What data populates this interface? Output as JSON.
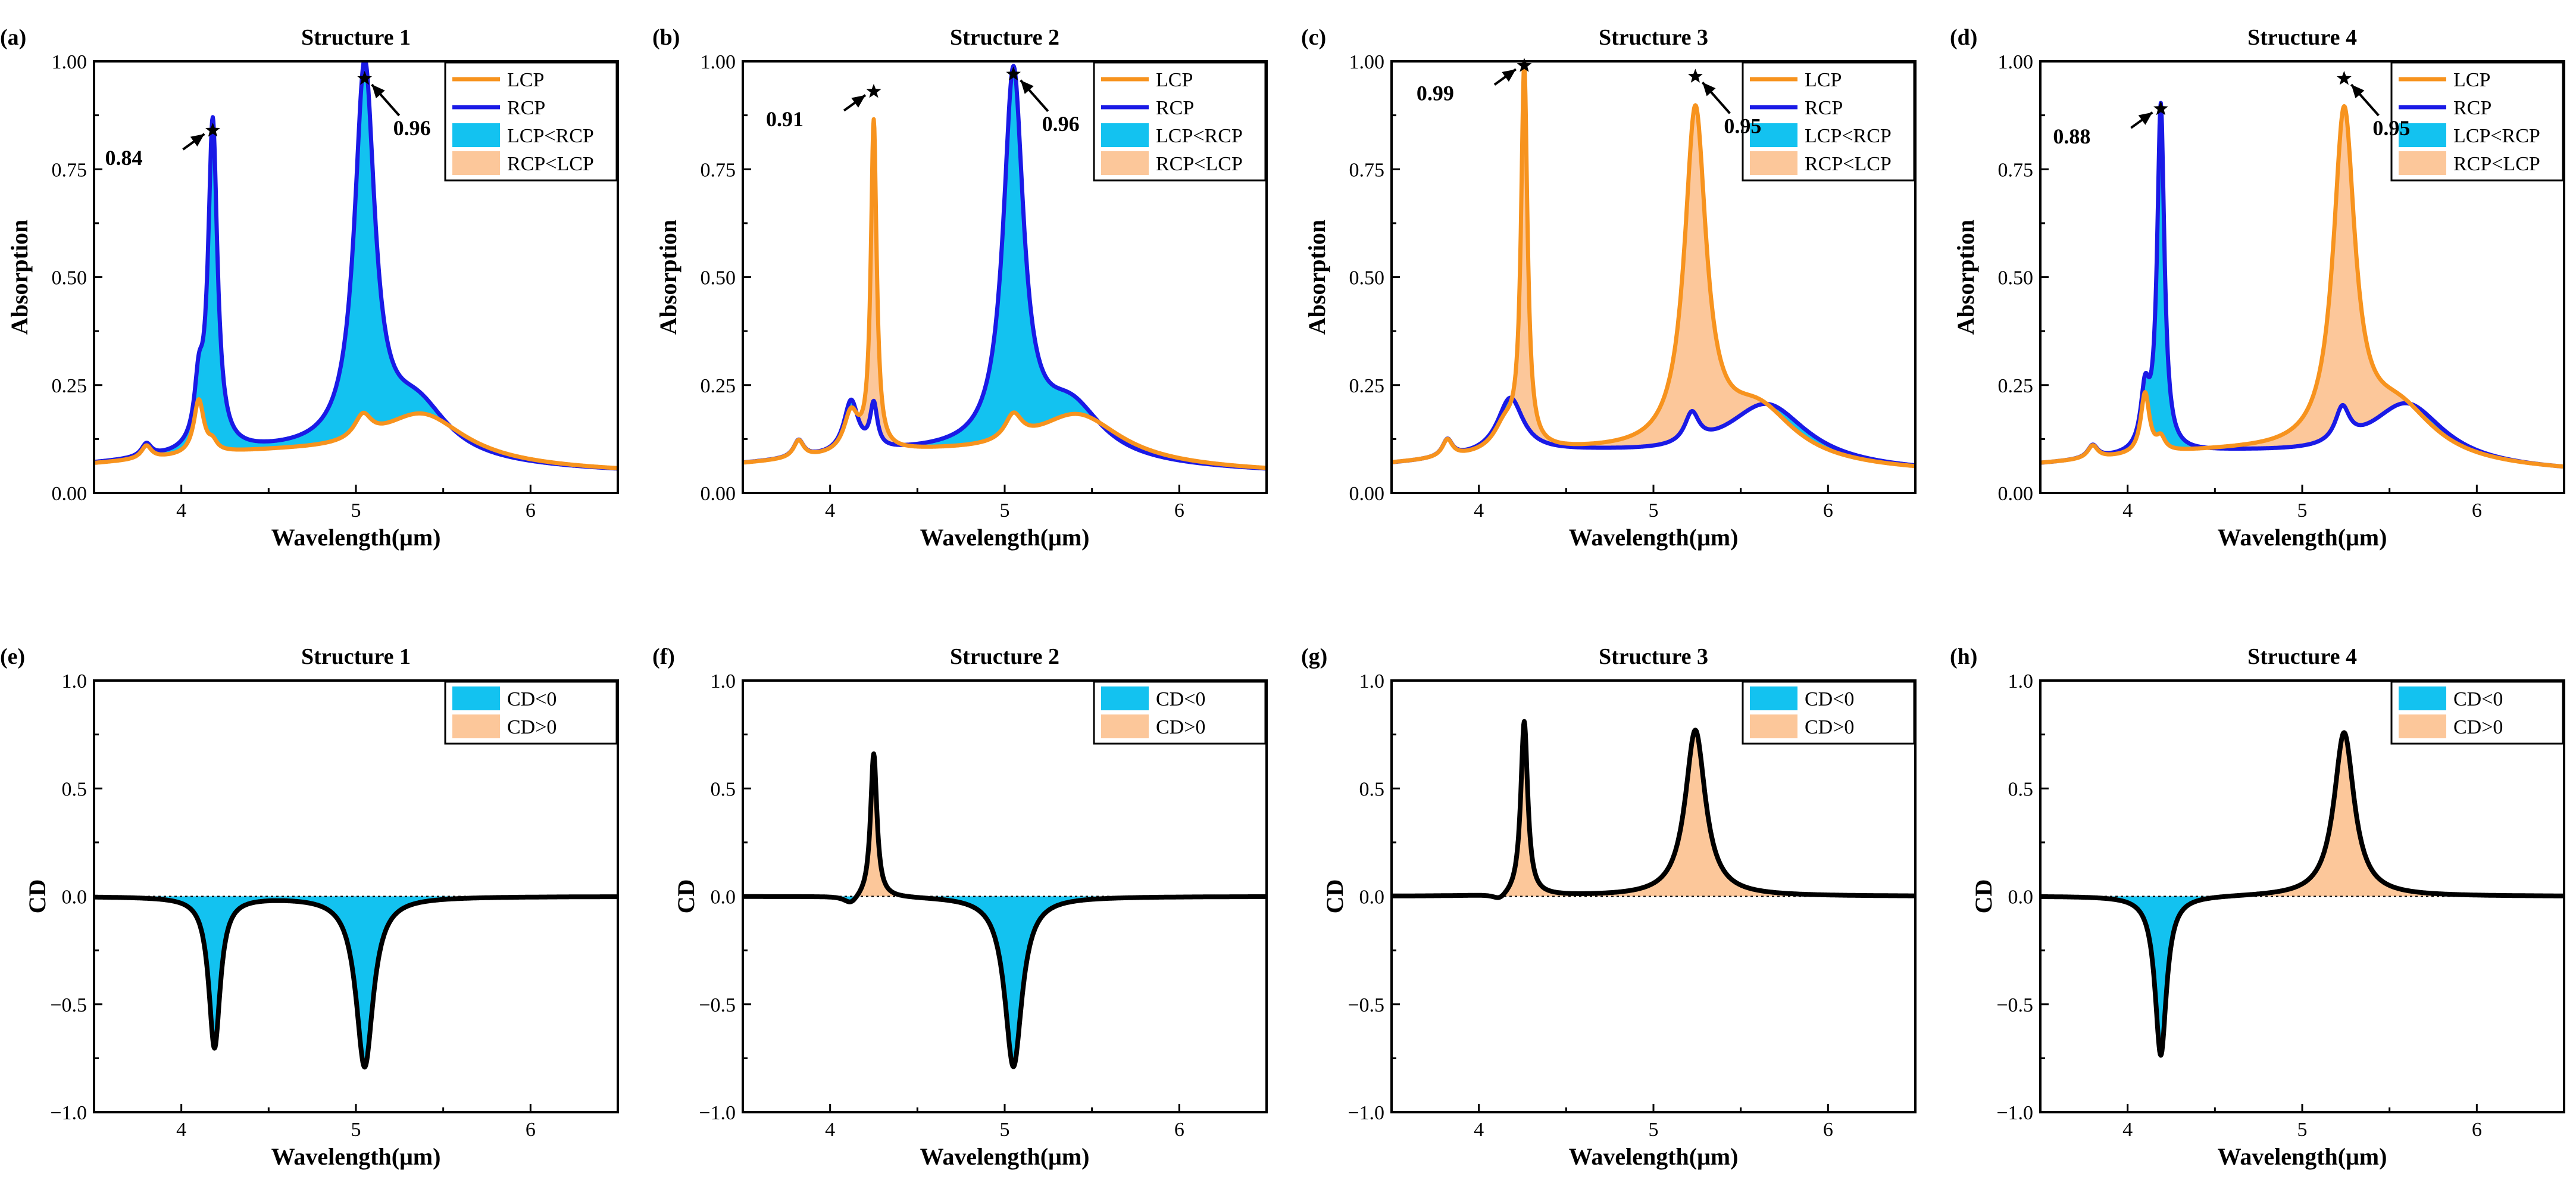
{
  "colors": {
    "lcp": "#f7931e",
    "rcp": "#1a1ae6",
    "cd_line": "#000000",
    "fill_lcp_lt_rcp": "#13c2f0",
    "fill_rcp_lt_lcp": "#fcc79a",
    "zero_line": "#000000"
  },
  "chart_data": [
    {
      "panel_label": "(a)",
      "title": "Structure 1",
      "type": "line",
      "xlabel": "Wavelength(μm)",
      "ylabel": "Absorption",
      "xlim": [
        3.5,
        6.5
      ],
      "ylim": [
        0,
        1
      ],
      "xticks": [
        4,
        5,
        6
      ],
      "yticks": [
        0.0,
        0.25,
        0.5,
        0.75,
        1.0
      ],
      "ytick_labels": [
        "0.00",
        "0.25",
        "0.50",
        "0.75",
        "1.00"
      ],
      "legend": {
        "placement": "top-right",
        "entries": [
          {
            "label": "LCP",
            "style": "line",
            "color": "lcp"
          },
          {
            "label": "RCP",
            "style": "line",
            "color": "rcp"
          },
          {
            "label": "LCP<RCP",
            "style": "fill",
            "color": "fill_lcp_lt_rcp"
          },
          {
            "label": "RCP<LCP",
            "style": "fill",
            "color": "fill_rcp_lt_lcp"
          }
        ]
      },
      "series": [
        {
          "name": "LCP",
          "color": "lcp",
          "peaks": [
            {
              "x": 3.8,
              "h": 0.03,
              "w": 0.035
            },
            {
              "x": 4.1,
              "h": 0.125,
              "w": 0.035
            },
            {
              "x": 4.18,
              "h": 0.02,
              "w": 0.03
            },
            {
              "x": 5.04,
              "h": 0.055,
              "w": 0.06
            },
            {
              "x": 5.38,
              "h": 0.11,
              "w": 0.3
            }
          ]
        },
        {
          "name": "RCP",
          "color": "rcp",
          "peaks": [
            {
              "x": 3.8,
              "h": 0.03,
              "w": 0.035
            },
            {
              "x": 4.1,
              "h": 0.125,
              "w": 0.03
            },
            {
              "x": 4.18,
              "h": 0.76,
              "w": 0.032
            },
            {
              "x": 5.05,
              "h": 0.88,
              "w": 0.07
            },
            {
              "x": 5.35,
              "h": 0.12,
              "w": 0.22
            }
          ]
        }
      ],
      "annotations": [
        {
          "text": "0.84",
          "x": 4.18,
          "y": 0.84
        },
        {
          "text": "0.96",
          "x": 5.05,
          "y": 0.96
        }
      ]
    },
    {
      "panel_label": "(b)",
      "title": "Structure 2",
      "type": "line",
      "xlabel": "Wavelength(μm)",
      "ylabel": "Absorption",
      "xlim": [
        3.5,
        6.5
      ],
      "ylim": [
        0,
        1
      ],
      "xticks": [
        4,
        5,
        6
      ],
      "yticks": [
        0.0,
        0.25,
        0.5,
        0.75,
        1.0
      ],
      "ytick_labels": [
        "0.00",
        "0.25",
        "0.50",
        "0.75",
        "1.00"
      ],
      "legend": {
        "placement": "top-right",
        "entries": [
          {
            "label": "LCP",
            "style": "line",
            "color": "lcp"
          },
          {
            "label": "RCP",
            "style": "line",
            "color": "rcp"
          },
          {
            "label": "LCP<RCP",
            "style": "fill",
            "color": "fill_lcp_lt_rcp"
          },
          {
            "label": "RCP<LCP",
            "style": "fill",
            "color": "fill_rcp_lt_lcp"
          }
        ]
      },
      "series": [
        {
          "name": "LCP",
          "color": "lcp",
          "peaks": [
            {
              "x": 3.82,
              "h": 0.04,
              "w": 0.035
            },
            {
              "x": 4.12,
              "h": 0.09,
              "w": 0.05
            },
            {
              "x": 4.25,
              "h": 0.76,
              "w": 0.02
            },
            {
              "x": 5.05,
              "h": 0.06,
              "w": 0.06
            },
            {
              "x": 5.42,
              "h": 0.11,
              "w": 0.3
            }
          ]
        },
        {
          "name": "RCP",
          "color": "rcp",
          "peaks": [
            {
              "x": 3.82,
              "h": 0.04,
              "w": 0.035
            },
            {
              "x": 4.12,
              "h": 0.12,
              "w": 0.05
            },
            {
              "x": 4.25,
              "h": 0.1,
              "w": 0.025
            },
            {
              "x": 5.05,
              "h": 0.87,
              "w": 0.07
            },
            {
              "x": 5.38,
              "h": 0.12,
              "w": 0.22
            }
          ]
        }
      ],
      "annotations": [
        {
          "text": "0.91",
          "x": 4.25,
          "y": 0.93
        },
        {
          "text": "0.96",
          "x": 5.05,
          "y": 0.97
        }
      ]
    },
    {
      "panel_label": "(c)",
      "title": "Structure 3",
      "type": "line",
      "xlabel": "Wavelength(μm)",
      "ylabel": "Absorption",
      "xlim": [
        3.5,
        6.5
      ],
      "ylim": [
        0,
        1
      ],
      "xticks": [
        4,
        5,
        6
      ],
      "yticks": [
        0.0,
        0.25,
        0.5,
        0.75,
        1.0
      ],
      "ytick_labels": [
        "0.00",
        "0.25",
        "0.50",
        "0.75",
        "1.00"
      ],
      "legend": {
        "placement": "top-right",
        "entries": [
          {
            "label": "LCP",
            "style": "line",
            "color": "lcp"
          },
          {
            "label": "RCP",
            "style": "line",
            "color": "rcp"
          },
          {
            "label": "LCP<RCP",
            "style": "fill",
            "color": "fill_lcp_lt_rcp"
          },
          {
            "label": "RCP<LCP",
            "style": "fill",
            "color": "fill_rcp_lt_lcp"
          }
        ]
      },
      "series": [
        {
          "name": "LCP",
          "color": "lcp",
          "peaks": [
            {
              "x": 3.82,
              "h": 0.04,
              "w": 0.035
            },
            {
              "x": 4.15,
              "h": 0.06,
              "w": 0.08
            },
            {
              "x": 4.26,
              "h": 0.88,
              "w": 0.022
            },
            {
              "x": 5.24,
              "h": 0.78,
              "w": 0.075
            },
            {
              "x": 5.6,
              "h": 0.12,
              "w": 0.26
            }
          ]
        },
        {
          "name": "RCP",
          "color": "rcp",
          "peaks": [
            {
              "x": 3.82,
              "h": 0.04,
              "w": 0.035
            },
            {
              "x": 4.18,
              "h": 0.13,
              "w": 0.09
            },
            {
              "x": 5.22,
              "h": 0.07,
              "w": 0.05
            },
            {
              "x": 5.65,
              "h": 0.14,
              "w": 0.28
            }
          ]
        }
      ],
      "annotations": [
        {
          "text": "0.99",
          "x": 4.26,
          "y": 0.99
        },
        {
          "text": "0.95",
          "x": 5.24,
          "y": 0.965
        }
      ]
    },
    {
      "panel_label": "(d)",
      "title": "Structure 4",
      "type": "line",
      "xlabel": "Wavelength(μm)",
      "ylabel": "Absorption",
      "xlim": [
        3.5,
        6.5
      ],
      "ylim": [
        0,
        1
      ],
      "xticks": [
        4,
        5,
        6
      ],
      "yticks": [
        0.0,
        0.25,
        0.5,
        0.75,
        1.0
      ],
      "ytick_labels": [
        "0.00",
        "0.25",
        "0.50",
        "0.75",
        "1.00"
      ],
      "legend": {
        "placement": "top-right",
        "entries": [
          {
            "label": "LCP",
            "style": "line",
            "color": "lcp"
          },
          {
            "label": "RCP",
            "style": "line",
            "color": "rcp"
          },
          {
            "label": "LCP<RCP",
            "style": "fill",
            "color": "fill_lcp_lt_rcp"
          },
          {
            "label": "RCP<LCP",
            "style": "fill",
            "color": "fill_rcp_lt_lcp"
          }
        ]
      },
      "series": [
        {
          "name": "LCP",
          "color": "lcp",
          "peaks": [
            {
              "x": 3.8,
              "h": 0.03,
              "w": 0.035
            },
            {
              "x": 4.1,
              "h": 0.14,
              "w": 0.03
            },
            {
              "x": 4.19,
              "h": 0.03,
              "w": 0.03
            },
            {
              "x": 5.24,
              "h": 0.77,
              "w": 0.075
            },
            {
              "x": 5.55,
              "h": 0.12,
              "w": 0.26
            }
          ]
        },
        {
          "name": "RCP",
          "color": "rcp",
          "peaks": [
            {
              "x": 3.8,
              "h": 0.03,
              "w": 0.035
            },
            {
              "x": 4.1,
              "h": 0.13,
              "w": 0.03
            },
            {
              "x": 4.19,
              "h": 0.8,
              "w": 0.025
            },
            {
              "x": 5.23,
              "h": 0.08,
              "w": 0.05
            },
            {
              "x": 5.6,
              "h": 0.14,
              "w": 0.26
            }
          ]
        }
      ],
      "annotations": [
        {
          "text": "0.88",
          "x": 4.19,
          "y": 0.89
        },
        {
          "text": "0.95",
          "x": 5.24,
          "y": 0.96
        }
      ]
    },
    {
      "panel_label": "(e)",
      "title": "Structure 1",
      "type": "area",
      "xlabel": "Wavelength(μm)",
      "ylabel": "CD",
      "xlim": [
        3.5,
        6.5
      ],
      "ylim": [
        -1,
        1
      ],
      "xticks": [
        4,
        5,
        6
      ],
      "yticks": [
        -1.0,
        -0.5,
        0.0,
        0.5,
        1.0
      ],
      "ytick_labels": [
        "−1.0",
        "−0.5",
        "0.0",
        "0.5",
        "1.0"
      ],
      "legend": {
        "placement": "top-right",
        "entries": [
          {
            "label": "CD<0",
            "style": "fill",
            "color": "fill_lcp_lt_rcp"
          },
          {
            "label": "CD>0",
            "style": "fill",
            "color": "fill_rcp_lt_lcp"
          }
        ]
      },
      "series": [
        {
          "name": "CD",
          "color": "cd_line",
          "peaks": [
            {
              "x": 4.19,
              "h": -0.7,
              "w": 0.04
            },
            {
              "x": 5.05,
              "h": -0.79,
              "w": 0.06
            }
          ]
        }
      ]
    },
    {
      "panel_label": "(f)",
      "title": "Structure 2",
      "type": "area",
      "xlabel": "Wavelength(μm)",
      "ylabel": "CD",
      "xlim": [
        3.5,
        6.5
      ],
      "ylim": [
        -1,
        1
      ],
      "xticks": [
        4,
        5,
        6
      ],
      "yticks": [
        -1.0,
        -0.5,
        0.0,
        0.5,
        1.0
      ],
      "ytick_labels": [
        "−1.0",
        "−0.5",
        "0.0",
        "0.5",
        "1.0"
      ],
      "legend": {
        "placement": "top-right",
        "entries": [
          {
            "label": "CD<0",
            "style": "fill",
            "color": "fill_lcp_lt_rcp"
          },
          {
            "label": "CD>0",
            "style": "fill",
            "color": "fill_rcp_lt_lcp"
          }
        ]
      },
      "series": [
        {
          "name": "CD",
          "color": "cd_line",
          "peaks": [
            {
              "x": 4.12,
              "h": -0.04,
              "w": 0.05
            },
            {
              "x": 4.25,
              "h": 0.67,
              "w": 0.022
            },
            {
              "x": 5.05,
              "h": -0.79,
              "w": 0.06
            }
          ]
        }
      ]
    },
    {
      "panel_label": "(g)",
      "title": "Structure 3",
      "type": "area",
      "xlabel": "Wavelength(μm)",
      "ylabel": "CD",
      "xlim": [
        3.5,
        6.5
      ],
      "ylim": [
        -1,
        1
      ],
      "xticks": [
        4,
        5,
        6
      ],
      "yticks": [
        -1.0,
        -0.5,
        0.0,
        0.5,
        1.0
      ],
      "ytick_labels": [
        "−1.0",
        "−0.5",
        "0.0",
        "0.5",
        "1.0"
      ],
      "legend": {
        "placement": "top-right",
        "entries": [
          {
            "label": "CD<0",
            "style": "fill",
            "color": "fill_lcp_lt_rcp"
          },
          {
            "label": "CD>0",
            "style": "fill",
            "color": "fill_rcp_lt_lcp"
          }
        ]
      },
      "series": [
        {
          "name": "CD",
          "color": "cd_line",
          "peaks": [
            {
              "x": 4.12,
              "h": -0.03,
              "w": 0.05
            },
            {
              "x": 4.26,
              "h": 0.81,
              "w": 0.024
            },
            {
              "x": 5.24,
              "h": 0.77,
              "w": 0.07
            }
          ]
        }
      ]
    },
    {
      "panel_label": "(h)",
      "title": "Structure 4",
      "type": "area",
      "xlabel": "Wavelength(μm)",
      "ylabel": "CD",
      "xlim": [
        3.5,
        6.5
      ],
      "ylim": [
        -1,
        1
      ],
      "xticks": [
        4,
        5,
        6
      ],
      "yticks": [
        -1.0,
        -0.5,
        0.0,
        0.5,
        1.0
      ],
      "ytick_labels": [
        "−1.0",
        "−0.5",
        "0.0",
        "0.5",
        "1.0"
      ],
      "legend": {
        "placement": "top-right",
        "entries": [
          {
            "label": "CD<0",
            "style": "fill",
            "color": "fill_lcp_lt_rcp"
          },
          {
            "label": "CD>0",
            "style": "fill",
            "color": "fill_rcp_lt_lcp"
          }
        ]
      },
      "series": [
        {
          "name": "CD",
          "color": "cd_line",
          "peaks": [
            {
              "x": 4.19,
              "h": -0.74,
              "w": 0.04
            },
            {
              "x": 5.24,
              "h": 0.76,
              "w": 0.07
            }
          ]
        }
      ]
    }
  ]
}
